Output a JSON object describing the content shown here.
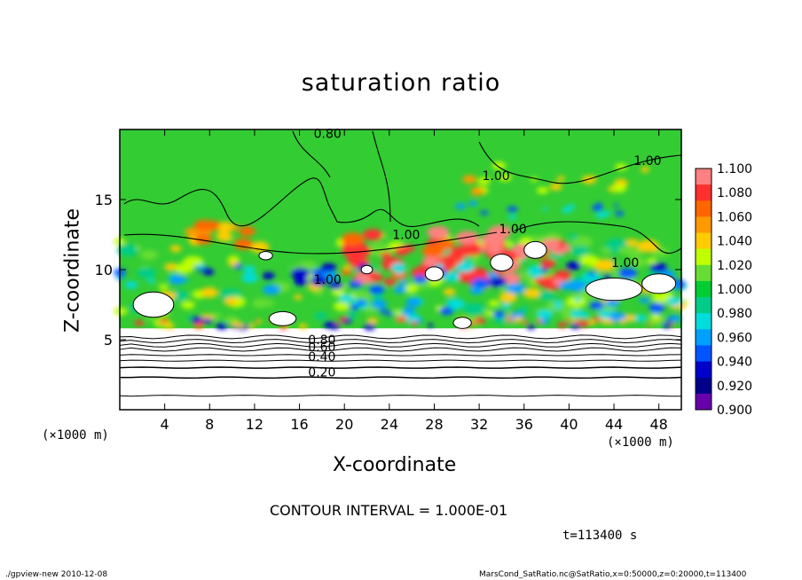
{
  "chart_data": {
    "type": "heatmap",
    "title": "saturation ratio",
    "xlabel": "X-coordinate",
    "ylabel": "Z-coordinate",
    "x_unit_left": "(×1000 m)",
    "x_unit_right": "(×1000 m)",
    "xlim": [
      0,
      50
    ],
    "ylim": [
      0,
      20
    ],
    "x_ticks": [
      4,
      8,
      12,
      16,
      20,
      24,
      28,
      32,
      36,
      40,
      44,
      48
    ],
    "y_ticks": [
      5,
      10,
      15
    ],
    "colorbar": {
      "min": 0.9,
      "max": 1.1,
      "labels": [
        "1.100",
        "1.080",
        "1.060",
        "1.040",
        "1.020",
        "1.000",
        "0.980",
        "0.960",
        "0.940",
        "0.920",
        "0.900"
      ],
      "colors": [
        "#ff8080",
        "#ff3030",
        "#ff6600",
        "#ff9900",
        "#ffcc00",
        "#bfff00",
        "#66dd33",
        "#00cc33",
        "#00cc88",
        "#00dddd",
        "#00a0ff",
        "#0055ff",
        "#0000cc",
        "#000088",
        "#6600aa"
      ]
    },
    "contour_labels": [
      {
        "text": "0.80",
        "x": 18.5,
        "z": 19.7
      },
      {
        "text": "1.00",
        "x": 33.5,
        "z": 16.7
      },
      {
        "text": "1.00",
        "x": 47.0,
        "z": 17.8
      },
      {
        "text": "1.00",
        "x": 25.5,
        "z": 12.5
      },
      {
        "text": "1.00",
        "x": 35.0,
        "z": 12.9
      },
      {
        "text": "1.00",
        "x": 45.0,
        "z": 10.5
      },
      {
        "text": "1.00",
        "x": 18.5,
        "z": 9.3
      },
      {
        "text": "0.80",
        "x": 18.0,
        "z": 5.0
      },
      {
        "text": "0.60",
        "x": 18.0,
        "z": 4.5
      },
      {
        "text": "0.40",
        "x": 18.0,
        "z": 3.8
      },
      {
        "text": "0.20",
        "x": 18.0,
        "z": 2.7
      }
    ]
  },
  "contour_interval": "CONTOUR INTERVAL = 1.000E-01",
  "time_label": "t=113400 s",
  "footer_left": "./gpview-new   2010-12-08",
  "footer_right": "MarsCond_SatRatio.nc@SatRatio,x=0:50000,z=0:20000,t=113400"
}
